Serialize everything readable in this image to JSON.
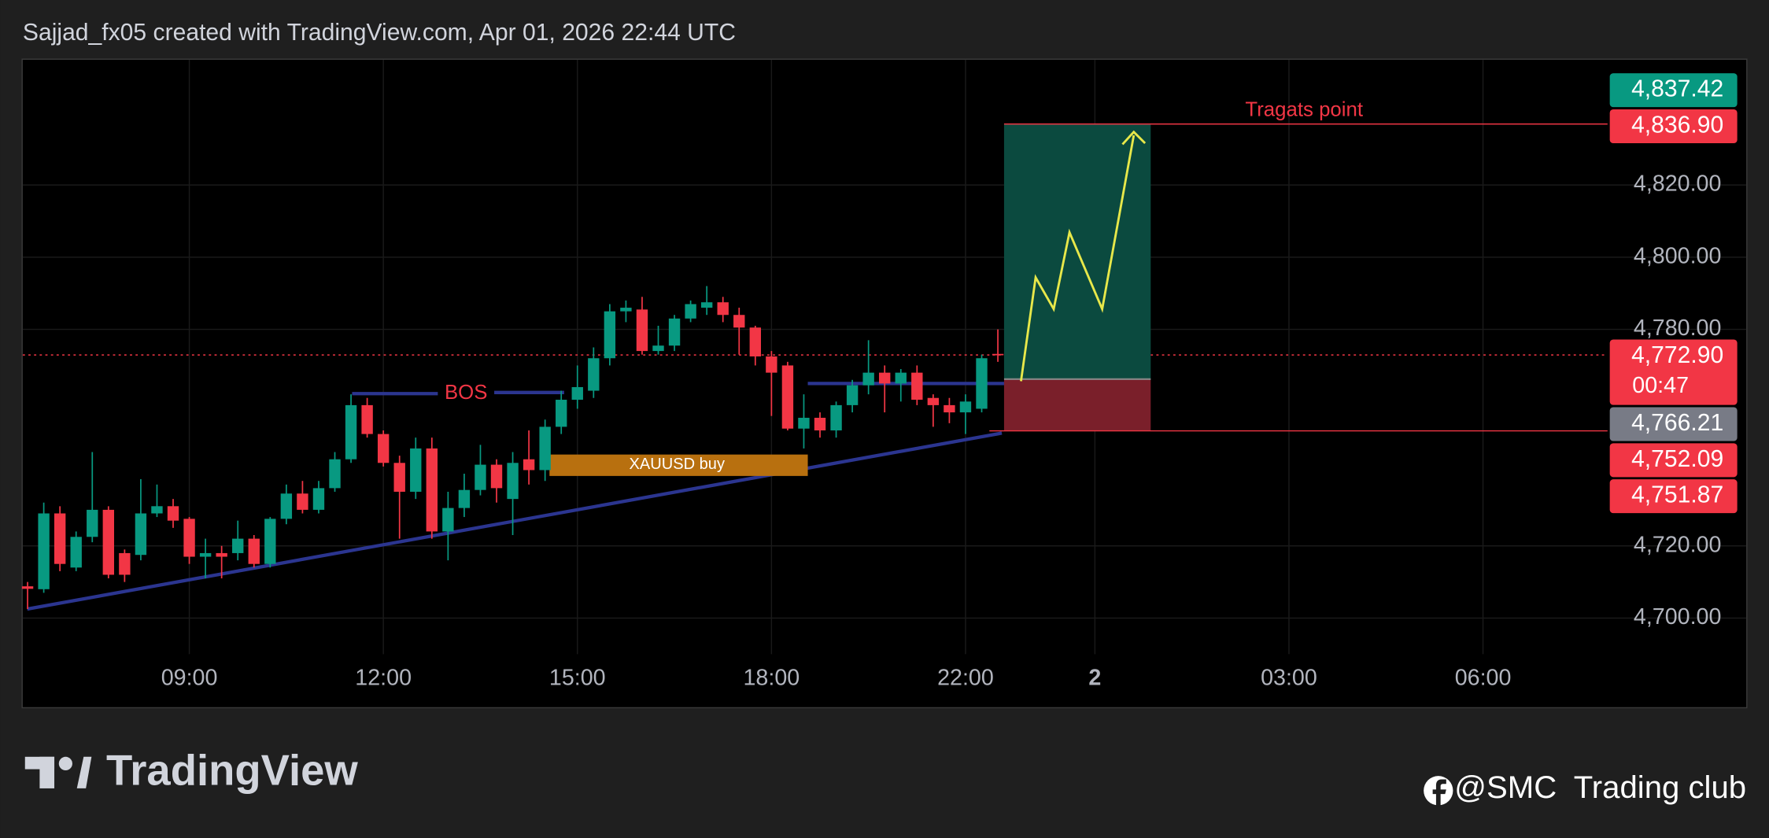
{
  "chart_data": {
    "type": "candlestick",
    "title": "Sajjad_fx05 created with TradingView.com, Apr 01, 2026 22:44 UTC",
    "open": [
      4708.8,
      4708,
      4729,
      4714,
      4722.5,
      4730,
      4718,
      4717.5,
      4729,
      4731,
      4727.5,
      4717,
      4718,
      4718,
      4722,
      4715,
      4727.5,
      4734.5,
      4730,
      4736,
      4744,
      4759,
      4751,
      4743,
      4735,
      4747,
      4724,
      4730.5,
      4735.5,
      4742.5,
      4733,
      4744,
      4741,
      4753,
      4760.5,
      4763,
      4772,
      4785,
      4785.5,
      4774,
      4775.5,
      4783,
      4786,
      4787.5,
      4784,
      4780.5,
      4772.5,
      4770,
      4752.5,
      4755.5,
      4752,
      4759,
      4764.5,
      4768,
      4765,
      4768,
      4761,
      4759,
      4757,
      4758,
      4773.2
    ],
    "high": [
      4710,
      4732,
      4731,
      4724,
      4746,
      4731,
      4719,
      4738.5,
      4737,
      4733,
      4728,
      4722,
      4720,
      4727,
      4723,
      4728,
      4737,
      4738,
      4738,
      4746,
      4762,
      4761,
      4752,
      4745,
      4750,
      4750,
      4735,
      4740,
      4748,
      4744,
      4746,
      4752,
      4755,
      4763,
      4770,
      4775,
      4787,
      4788,
      4789,
      4781,
      4784,
      4788,
      4792,
      4789,
      4786,
      4781,
      4774,
      4771,
      4762,
      4757,
      4760,
      4766,
      4777,
      4770,
      4769,
      4770,
      4762,
      4761,
      4762,
      4773,
      4780
    ],
    "low": [
      4702.5,
      4707,
      4713,
      4713,
      4721,
      4711,
      4710,
      4716,
      4728,
      4725,
      4715,
      4711,
      4711,
      4716,
      4714,
      4714,
      4726,
      4729,
      4729,
      4735,
      4743,
      4750,
      4742,
      4722,
      4733,
      4722,
      4716,
      4728,
      4734,
      4732,
      4723,
      4737,
      4738,
      4751,
      4758,
      4761,
      4770,
      4782,
      4773,
      4773,
      4774,
      4782,
      4784,
      4782,
      4773,
      4770,
      4756,
      4752,
      4747,
      4750,
      4750,
      4757,
      4762,
      4757,
      4760,
      4759,
      4753,
      4754,
      4751,
      4757,
      4771
    ],
    "close": [
      4708.1,
      4729,
      4715,
      4722.5,
      4730,
      4712,
      4712,
      4729,
      4731,
      4727,
      4717,
      4718,
      4717,
      4722,
      4715,
      4727.5,
      4734.5,
      4730,
      4736,
      4744,
      4759,
      4751,
      4743,
      4735,
      4747,
      4724,
      4730.5,
      4735.5,
      4742.5,
      4736,
      4743,
      4741,
      4753,
      4760.5,
      4764,
      4772,
      4785,
      4786,
      4774,
      4775.5,
      4783,
      4787,
      4787.5,
      4784,
      4780.5,
      4772.5,
      4768,
      4752.5,
      4755.5,
      4752,
      4759,
      4764.5,
      4768,
      4765,
      4768,
      4760.5,
      4759,
      4757,
      4760,
      4772,
      4772.9
    ],
    "up_color": "#089981",
    "down_color": "#f23645",
    "xlim": [
      -0.3,
      97.7
    ],
    "xticks": [
      {
        "value": 10,
        "label": "09:00"
      },
      {
        "value": 22,
        "label": "12:00"
      },
      {
        "value": 34,
        "label": "15:00"
      },
      {
        "value": 46,
        "label": "18:00"
      },
      {
        "value": 58,
        "label": "22:00"
      },
      {
        "value": 66,
        "label": "2"
      },
      {
        "value": 78,
        "label": "03:00"
      },
      {
        "value": 90,
        "label": "06:00"
      }
    ],
    "ylim": [
      4690,
      4854.7
    ],
    "yticks": [
      {
        "value": 4700,
        "label": "4,700.00"
      },
      {
        "value": 4720,
        "label": "4,720.00"
      },
      {
        "value": 4780,
        "label": "4,780.00"
      },
      {
        "value": 4800,
        "label": "4,800.00"
      },
      {
        "value": 4820,
        "label": "4,820.00"
      }
    ],
    "grid": true,
    "price_labels": [
      {
        "value": 4837.42,
        "label": "4,837.42",
        "color": "#089981"
      },
      {
        "value": 4836.9,
        "label": "4,836.90",
        "color": "#f23645"
      },
      {
        "value": 4772.9,
        "label": "4,772.90",
        "color": "#f23645"
      },
      {
        "value": 4766.21,
        "label": "4,766.21",
        "color": "#787b86"
      },
      {
        "value": 4752.09,
        "label": "4,752.09",
        "color": "#f23645"
      },
      {
        "value": 4751.87,
        "label": "4,751.87",
        "color": "#f23645"
      }
    ],
    "countdown": "00:47",
    "annotations": {
      "bos": "BOS",
      "buy_zone": "XAUUSD buy",
      "target": "Tragats point"
    },
    "footer": {
      "brand": "TradingView",
      "credit": "@SMC  Trading club"
    }
  }
}
